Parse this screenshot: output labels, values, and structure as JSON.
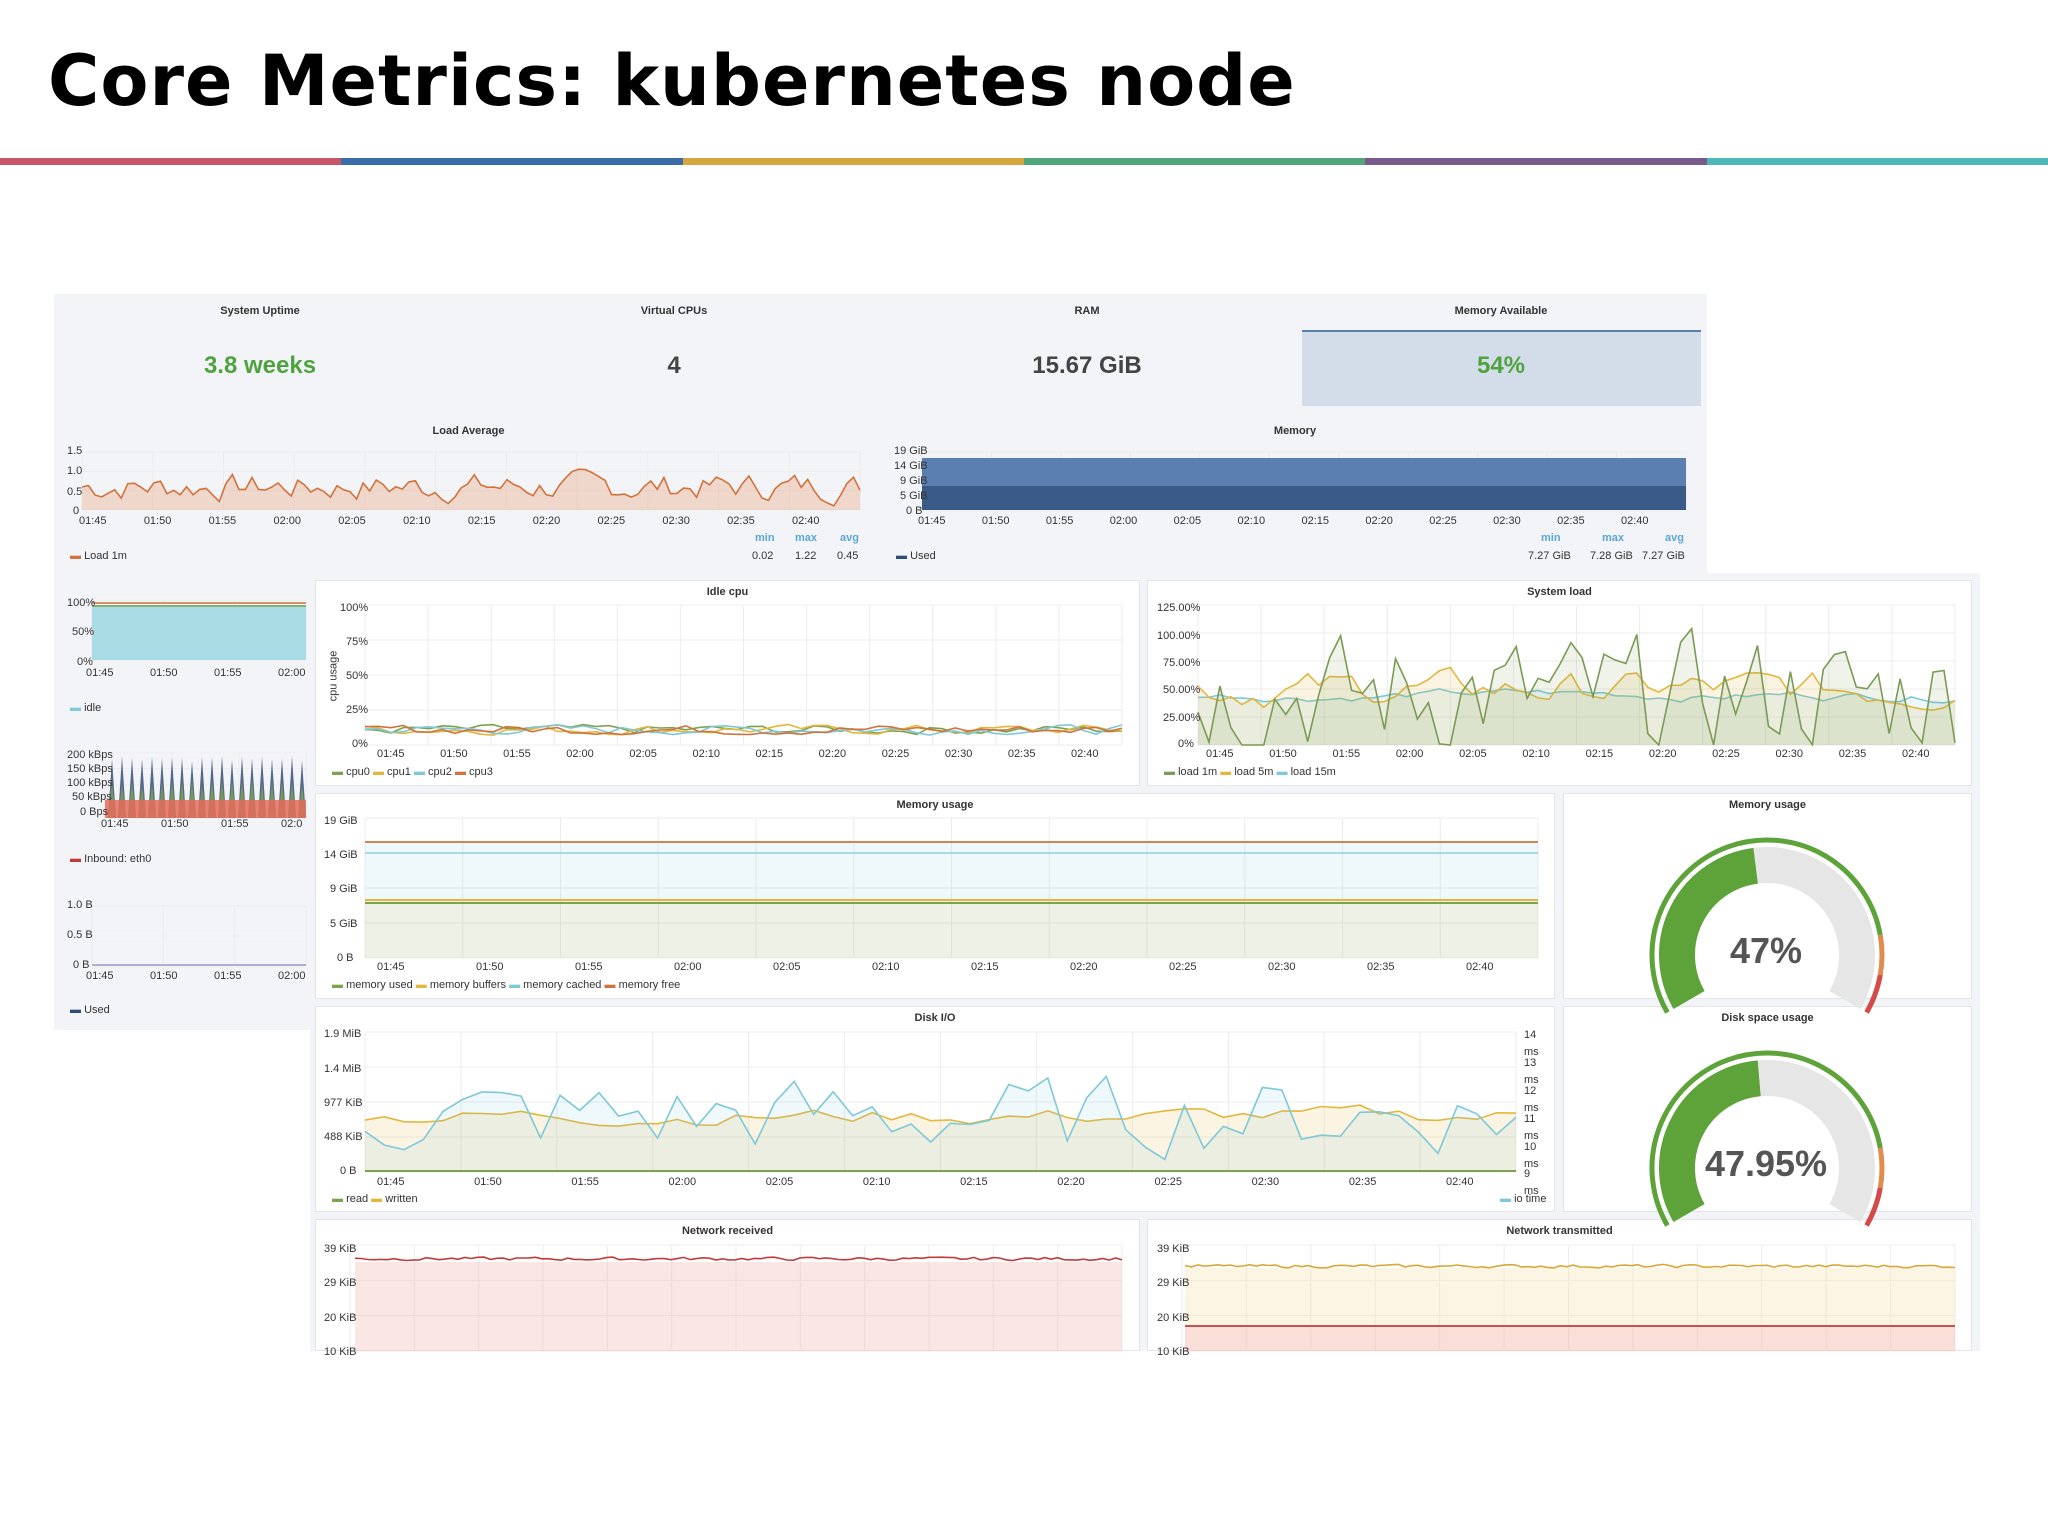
{
  "slide": {
    "title": "Core Metrics: kubernetes node"
  },
  "colors": {
    "stripe": [
      "#c95569",
      "#3a6da8",
      "#d6a73e",
      "#4ea67a",
      "#7a5a8c",
      "#4cb8b8"
    ],
    "green": "#5ea33a",
    "orange": "#d0733c",
    "grid": "#e6e6e6"
  },
  "stats": [
    {
      "label": "System Uptime",
      "value": "3.8 weeks",
      "color": "#4ea33f"
    },
    {
      "label": "Virtual CPUs",
      "value": "4",
      "color": "#444444"
    },
    {
      "label": "RAM",
      "value": "15.67 GiB",
      "color": "#444444"
    },
    {
      "label": "Memory Available",
      "value": "54%",
      "color": "#4ea33f"
    }
  ],
  "times": [
    "01:45",
    "01:50",
    "01:55",
    "02:00",
    "02:05",
    "02:10",
    "02:15",
    "02:20",
    "02:25",
    "02:30",
    "02:35",
    "02:40"
  ],
  "times_short": [
    "01:45",
    "01:50",
    "01:55",
    "02:00"
  ],
  "load_average": {
    "title": "Load Average",
    "yticks": [
      "1.5",
      "1.0",
      "0.5",
      "0"
    ],
    "legend": "Load 1m",
    "min_label": "min",
    "max_label": "max",
    "avg_label": "avg",
    "min": "0.02",
    "max": "1.22",
    "avg": "0.45"
  },
  "memory": {
    "title": "Memory",
    "yticks": [
      "19 GiB",
      "14 GiB",
      "9 GiB",
      "5 GiB",
      "0 B"
    ],
    "legend": "Used",
    "min_label": "min",
    "max_label": "max",
    "avg_label": "avg",
    "min": "7.27 GiB",
    "max": "7.28 GiB",
    "avg": "7.27 GiB"
  },
  "left_col": {
    "cpu": {
      "yticks": [
        "100%",
        "50%",
        "0%"
      ],
      "legend": "idle"
    },
    "net": {
      "yticks": [
        "200 kBps",
        "150 kBps",
        "100 kBps",
        "50 kBps",
        "0 Bps"
      ],
      "times": [
        "01:45",
        "01:50",
        "01:55",
        "02:0"
      ],
      "legend": "Inbound: eth0"
    },
    "used": {
      "yticks": [
        "1.0 B",
        "0.5 B",
        "0 B"
      ],
      "legend": "Used"
    }
  },
  "idle_cpu": {
    "title": "Idle cpu",
    "ylabel": "cpu usage",
    "yticks": [
      "100%",
      "75%",
      "50%",
      "25%",
      "0%"
    ],
    "legend": [
      "cpu0",
      "cpu1",
      "cpu2",
      "cpu3"
    ],
    "colors": [
      "#7ea24f",
      "#e3b73e",
      "#7ec8d8",
      "#d0733c"
    ]
  },
  "system_load": {
    "title": "System load",
    "yticks": [
      "125.00%",
      "100.00%",
      "75.00%",
      "50.00%",
      "25.00%",
      "0%"
    ],
    "legend": [
      "load 1m",
      "load 5m",
      "load 15m"
    ],
    "colors": [
      "#7a9a55",
      "#e3b73e",
      "#7ec8d8"
    ]
  },
  "memory_usage": {
    "title": "Memory usage",
    "yticks": [
      "19 GiB",
      "14 GiB",
      "9 GiB",
      "5 GiB",
      "0 B"
    ],
    "legend": [
      "memory used",
      "memory buffers",
      "memory cached",
      "memory free"
    ],
    "colors": [
      "#7ea24f",
      "#e3b73e",
      "#7ec8d8",
      "#d0733c"
    ]
  },
  "memory_gauge": {
    "title": "Memory usage",
    "value": "47%",
    "percent": 47
  },
  "disk_io": {
    "title": "Disk I/O",
    "yticks": [
      "1.9 MiB",
      "1.4 MiB",
      "977 KiB",
      "488 KiB",
      "0 B"
    ],
    "yticks_right": [
      "14",
      "ms",
      "13",
      "ms",
      "12",
      "ms",
      "11",
      "ms",
      "10",
      "ms",
      "9",
      "ms"
    ],
    "legend": [
      "read",
      "written"
    ],
    "legend_right": "io time",
    "colors": [
      "#7ea24f",
      "#e3b73e",
      "#7ec8d8"
    ]
  },
  "disk_gauge": {
    "title": "Disk space usage",
    "value": "47.95%",
    "percent": 47.95
  },
  "net_received": {
    "title": "Network received",
    "yticks": [
      "39 KiB",
      "29 KiB",
      "20 KiB",
      "10 KiB"
    ]
  },
  "net_transmitted": {
    "title": "Network transmitted",
    "yticks": [
      "39 KiB",
      "29 KiB",
      "20 KiB",
      "10 KiB"
    ]
  }
}
